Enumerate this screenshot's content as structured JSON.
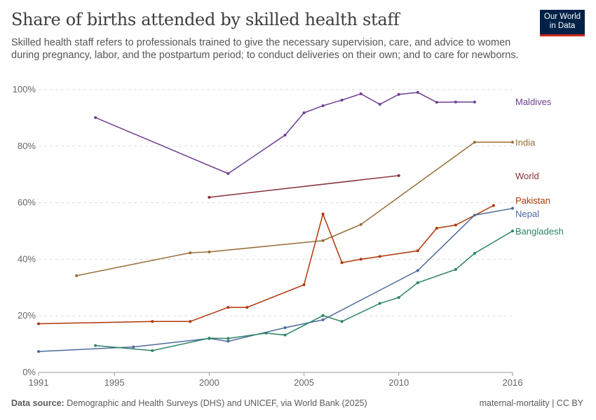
{
  "header": {
    "title": "Share of births attended by skilled health staff",
    "subtitle": "Skilled health staff refers to professionals trained to give the necessary supervision, care, and advice to women during pregnancy, labor, and the postpartum period; to conduct deliveries on their own; and to care for newborns.",
    "logo_text": "Our World in Data"
  },
  "footer": {
    "source_label": "Data source:",
    "source_text": "Demographic and Health Surveys (DHS) and UNICEF, via World Bank (2025)",
    "license": "maternal-mortality | CC BY"
  },
  "chart_data": {
    "type": "line",
    "title": "Share of births attended by skilled health staff",
    "xlabel": "",
    "ylabel": "",
    "xlim": [
      1991,
      2016
    ],
    "ylim": [
      0,
      100
    ],
    "x_ticks": [
      "1991",
      "1995",
      "2000",
      "2005",
      "2010",
      "2016"
    ],
    "x_tick_values": [
      1991,
      1995,
      2000,
      2005,
      2010,
      2016
    ],
    "y_ticks": [
      "0%",
      "20%",
      "40%",
      "60%",
      "80%",
      "100%"
    ],
    "y_tick_values": [
      0,
      20,
      40,
      60,
      80,
      100
    ],
    "grid": "horizontal dashed",
    "legend": "right (inline labels)",
    "series": [
      {
        "name": "Maldives",
        "color": "#6d3e91",
        "points": [
          [
            1994,
            90.1
          ],
          [
            2001,
            70.3
          ],
          [
            2004,
            83.9
          ],
          [
            2005,
            91.8
          ],
          [
            2006,
            94.3
          ],
          [
            2007,
            96.3
          ],
          [
            2008,
            98.5
          ],
          [
            2009,
            94.8
          ],
          [
            2010,
            98.3
          ],
          [
            2011,
            99.0
          ],
          [
            2012,
            95.5
          ],
          [
            2013,
            95.6
          ],
          [
            2014,
            95.6
          ]
        ]
      },
      {
        "name": "India",
        "color": "#996d39",
        "points": [
          [
            1993,
            34.2
          ],
          [
            1999,
            42.3
          ],
          [
            2000,
            42.6
          ],
          [
            2006,
            46.6
          ],
          [
            2008,
            52.3
          ],
          [
            2014,
            81.4
          ],
          [
            2016,
            81.4
          ]
        ]
      },
      {
        "name": "World",
        "color": "#883039",
        "points": [
          [
            2000,
            61.9
          ],
          [
            2010,
            69.6
          ]
        ]
      },
      {
        "name": "Pakistan",
        "color": "#b13507",
        "points": [
          [
            1991,
            17.2
          ],
          [
            1997,
            18.0
          ],
          [
            1999,
            18.0
          ],
          [
            2001,
            23.0
          ],
          [
            2002,
            23.0
          ],
          [
            2005,
            31.0
          ],
          [
            2006,
            56.0
          ],
          [
            2007,
            38.8
          ],
          [
            2008,
            40.0
          ],
          [
            2009,
            41.0
          ],
          [
            2011,
            43.0
          ],
          [
            2012,
            51.0
          ],
          [
            2013,
            52.1
          ],
          [
            2015,
            59.0
          ]
        ]
      },
      {
        "name": "Nepal",
        "color": "#4c6a9c",
        "points": [
          [
            1991,
            7.4
          ],
          [
            1996,
            9.0
          ],
          [
            2000,
            12.0
          ],
          [
            2001,
            11.0
          ],
          [
            2004,
            15.8
          ],
          [
            2006,
            18.6
          ],
          [
            2011,
            36.0
          ],
          [
            2014,
            55.6
          ],
          [
            2016,
            58.0
          ]
        ]
      },
      {
        "name": "Bangladesh",
        "color": "#2c8465",
        "points": [
          [
            1994,
            9.5
          ],
          [
            1997,
            7.7
          ],
          [
            2000,
            12.1
          ],
          [
            2001,
            12.0
          ],
          [
            2003,
            13.9
          ],
          [
            2004,
            13.2
          ],
          [
            2006,
            20.1
          ],
          [
            2007,
            18.0
          ],
          [
            2009,
            24.4
          ],
          [
            2010,
            26.5
          ],
          [
            2011,
            31.7
          ],
          [
            2013,
            36.4
          ],
          [
            2014,
            42.1
          ],
          [
            2016,
            50.0
          ]
        ]
      }
    ]
  }
}
